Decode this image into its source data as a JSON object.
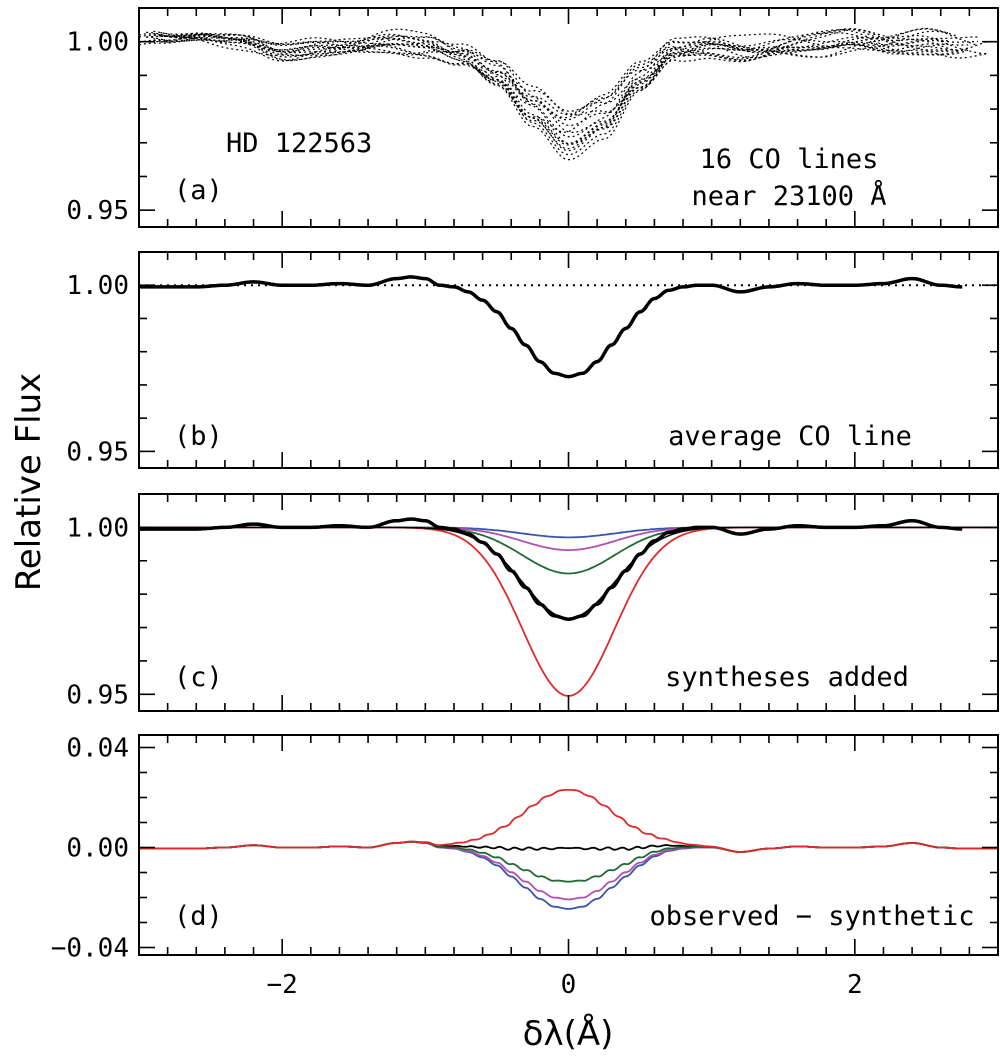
{
  "figure": {
    "ylabel": "Relative Flux",
    "xlabel": "δλ(Å)"
  },
  "colors": {
    "observed": "#000000",
    "blue": "#3a55aa",
    "magenta": "#b050b0",
    "green": "#1f6b35",
    "red": "#e02a2a",
    "dotted_ref": "#000000"
  },
  "chart_data": [
    {
      "panel": "a",
      "type": "line",
      "xlim": [
        -3,
        3
      ],
      "ylim": [
        0.945,
        1.01
      ],
      "yticks": [
        {
          "v": 0.95,
          "label": "0.95"
        },
        {
          "v": 1.0,
          "label": "1.00"
        }
      ],
      "xticks": [
        -2,
        0,
        2
      ],
      "xtick_labels": false,
      "annotations": {
        "panel_label": "(a)",
        "star": "HD 122563",
        "line1": "16 CO lines",
        "line2": "near 23100 Å"
      },
      "description_series": "16 individual CO line profiles (dotted)",
      "n_lines": 16,
      "x": [
        -3.0,
        -2.75,
        -2.5,
        -2.25,
        -2.0,
        -1.75,
        -1.5,
        -1.25,
        -1.0,
        -0.75,
        -0.5,
        -0.25,
        0.0,
        0.25,
        0.5,
        0.75,
        1.0,
        1.25,
        1.5,
        1.75,
        2.0,
        2.25,
        2.5,
        2.75
      ],
      "mean_profile": [
        1.0,
        0.998,
        0.999,
        1.0,
        0.998,
        0.999,
        0.999,
        1.0,
        0.999,
        0.996,
        0.99,
        0.98,
        0.972,
        0.977,
        0.988,
        0.997,
        0.999,
        0.998,
        0.999,
        0.999,
        1.0,
        0.999,
        1.0,
        0.999
      ],
      "scatter_amplitude": 0.004
    },
    {
      "panel": "b",
      "type": "line",
      "xlim": [
        -3,
        3
      ],
      "ylim": [
        0.945,
        1.01
      ],
      "yticks": [
        {
          "v": 0.95,
          "label": "0.95"
        },
        {
          "v": 1.0,
          "label": "1.00"
        }
      ],
      "xticks": [
        -2,
        0,
        2
      ],
      "xtick_labels": false,
      "annotations": {
        "panel_label": "(b)",
        "text": "average CO line"
      },
      "reference_line": 1.0,
      "x": [
        -3.0,
        -2.8,
        -2.6,
        -2.4,
        -2.2,
        -2.0,
        -1.8,
        -1.6,
        -1.4,
        -1.2,
        -1.1,
        -1.0,
        -0.9,
        -0.8,
        -0.7,
        -0.6,
        -0.5,
        -0.4,
        -0.3,
        -0.2,
        -0.1,
        0.0,
        0.1,
        0.2,
        0.3,
        0.4,
        0.5,
        0.6,
        0.7,
        0.8,
        0.9,
        1.0,
        1.2,
        1.4,
        1.6,
        1.8,
        2.0,
        2.2,
        2.4,
        2.6,
        2.75
      ],
      "y": [
        0.9995,
        0.9995,
        0.9995,
        1.0,
        1.001,
        1.0,
        1.0,
        1.0005,
        1.0,
        1.002,
        1.0025,
        1.002,
        1.0,
        0.9995,
        0.998,
        0.9955,
        0.992,
        0.987,
        0.982,
        0.977,
        0.9735,
        0.9725,
        0.9735,
        0.977,
        0.982,
        0.987,
        0.992,
        0.996,
        0.9985,
        0.9995,
        1.0,
        1.0,
        0.998,
        0.9995,
        1.0005,
        1.0,
        1.0,
        1.0005,
        1.002,
        1.0,
        0.9995
      ]
    },
    {
      "panel": "c",
      "type": "line",
      "xlim": [
        -3,
        3
      ],
      "ylim": [
        0.945,
        1.01
      ],
      "yticks": [
        {
          "v": 0.95,
          "label": "0.95"
        },
        {
          "v": 1.0,
          "label": "1.00"
        }
      ],
      "xticks": [
        -2,
        0,
        2
      ],
      "xtick_labels": false,
      "annotations": {
        "panel_label": "(c)",
        "text": "syntheses added"
      },
      "observed_ref": "b",
      "synthetic_depths": [
        {
          "color_key": "blue",
          "depth": 0.003
        },
        {
          "color_key": "magenta",
          "depth": 0.0068
        },
        {
          "color_key": "green",
          "depth": 0.0138
        },
        {
          "color_key": "observed",
          "depth": 0.0272
        },
        {
          "color_key": "red",
          "depth": 0.0505
        }
      ],
      "synthetic_sigma": 0.32
    },
    {
      "panel": "d",
      "type": "line",
      "xlim": [
        -3,
        3
      ],
      "ylim": [
        -0.043,
        0.045
      ],
      "yticks": [
        {
          "v": -0.04,
          "label": "−0.04"
        },
        {
          "v": 0.0,
          "label": "0.00"
        },
        {
          "v": 0.04,
          "label": "0.04"
        }
      ],
      "xticks": [
        -2,
        0,
        2
      ],
      "xtick_labels": true,
      "xtick_label_text": [
        "−2",
        "0",
        "2"
      ],
      "annotations": {
        "panel_label": "(d)",
        "text": "observed − synthetic"
      },
      "residual_amplitudes": [
        {
          "color_key": "blue",
          "peak": -0.0243
        },
        {
          "color_key": "magenta",
          "peak": -0.0205
        },
        {
          "color_key": "green",
          "peak": -0.0134
        },
        {
          "color_key": "observed",
          "peak": 0.0
        },
        {
          "color_key": "red",
          "peak": 0.0233
        }
      ]
    }
  ]
}
